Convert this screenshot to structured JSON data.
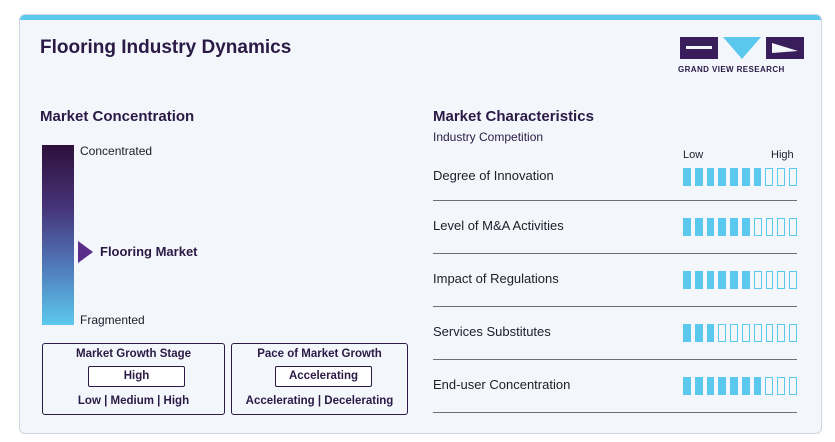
{
  "title": "Flooring Industry Dynamics",
  "logo": {
    "text": "GRAND VIEW RESEARCH"
  },
  "concentration": {
    "section_title": "Market Concentration",
    "top_label": "Concentrated",
    "bottom_label": "Fragmented",
    "market_label": "Flooring Market"
  },
  "growth_stage": {
    "title": "Market Growth Stage",
    "value": "High",
    "options": "Low | Medium | High"
  },
  "growth_pace": {
    "title": "Pace of Market Growth",
    "value": "Accelerating",
    "options": "Accelerating | Decelerating"
  },
  "characteristics": {
    "section_title": "Market Characteristics",
    "subtitle": "Industry Competition",
    "scale_low": "Low",
    "scale_high": "High",
    "segments_total": 10,
    "rows": [
      {
        "label": "Degree of Innovation",
        "level": 7
      },
      {
        "label": "Level of M&A Activities",
        "level": 6
      },
      {
        "label": "Impact of Regulations",
        "level": 6
      },
      {
        "label": "Services Substitutes",
        "level": 3
      },
      {
        "label": "End-user Concentration",
        "level": 7
      }
    ]
  },
  "colors": {
    "accent": "#5bc8ee",
    "brand_dark": "#2a1a45",
    "pointer": "#5a2d8a"
  }
}
